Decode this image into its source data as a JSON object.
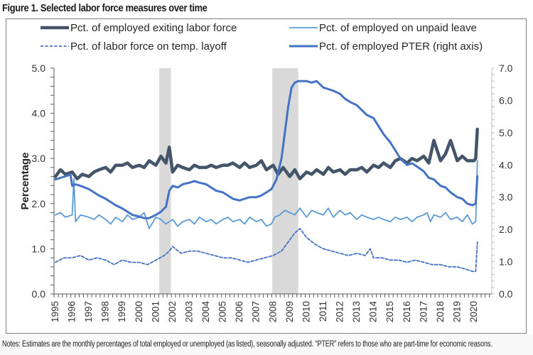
{
  "figure": {
    "title": "Figure 1. Selected labor force measures over time",
    "notes": "Notes: Estimates are the monthly percentages of total employed or unemployed (as listed), seasonally adjusted. “PTER” refers to those who are part-time for economic reasons."
  },
  "chart_data": {
    "type": "line",
    "title": "Figure 1. Selected labor force measures over time",
    "xlabel": "",
    "ylabel": "Percentage",
    "y2label": "",
    "xlim": [
      1995,
      2021
    ],
    "ylim": [
      0,
      5.0
    ],
    "y2lim": [
      0,
      7.0
    ],
    "x_tick_labels": [
      "1995",
      "1996",
      "1997",
      "1998",
      "1999",
      "2000",
      "2001",
      "2002",
      "2003",
      "2004",
      "2005",
      "2006",
      "2007",
      "2008",
      "2009",
      "2010",
      "2011",
      "2012",
      "2013",
      "2014",
      "2015",
      "2016",
      "2017",
      "2018",
      "2019",
      "2020"
    ],
    "y_tick_labels": [
      "0.0",
      "1.0",
      "2.0",
      "3.0",
      "4.0",
      "5.0"
    ],
    "y2_tick_labels": [
      "0.0",
      "1.0",
      "2.0",
      "3.0",
      "4.0",
      "5.0",
      "6.0",
      "7.0"
    ],
    "grid": false,
    "legend_position": "top",
    "recessions": [
      {
        "start": 2001.2,
        "end": 2001.9
      },
      {
        "start": 2007.95,
        "end": 2009.5
      }
    ],
    "series": [
      {
        "name": "Pct. of employed exiting labor force",
        "axis": "left",
        "style": "thick-solid",
        "color": "#44546a",
        "x": [
          1995.0,
          1995.3,
          1995.6,
          1996.0,
          1996.3,
          1996.6,
          1997.0,
          1997.3,
          1997.6,
          1998.0,
          1998.3,
          1998.6,
          1999.0,
          1999.3,
          1999.6,
          2000.0,
          2000.3,
          2000.6,
          2001.0,
          2001.3,
          2001.6,
          2001.8,
          2002.0,
          2002.3,
          2002.6,
          2003.0,
          2003.3,
          2003.6,
          2004.0,
          2004.3,
          2004.6,
          2005.0,
          2005.3,
          2005.6,
          2006.0,
          2006.3,
          2006.6,
          2007.0,
          2007.3,
          2007.6,
          2008.0,
          2008.3,
          2008.6,
          2009.0,
          2009.3,
          2009.6,
          2010.0,
          2010.3,
          2010.6,
          2011.0,
          2011.3,
          2011.6,
          2012.0,
          2012.3,
          2012.6,
          2013.0,
          2013.3,
          2013.6,
          2014.0,
          2014.3,
          2014.6,
          2015.0,
          2015.3,
          2015.6,
          2016.0,
          2016.3,
          2016.6,
          2017.0,
          2017.3,
          2017.6,
          2018.0,
          2018.3,
          2018.6,
          2019.0,
          2019.3,
          2019.6,
          2020.0,
          2020.1,
          2020.2
        ],
        "values": [
          2.6,
          2.75,
          2.65,
          2.7,
          2.55,
          2.65,
          2.6,
          2.7,
          2.75,
          2.8,
          2.7,
          2.85,
          2.85,
          2.9,
          2.8,
          2.85,
          2.8,
          2.95,
          2.85,
          3.05,
          2.9,
          3.25,
          2.7,
          2.85,
          2.8,
          2.75,
          2.85,
          2.8,
          2.8,
          2.85,
          2.8,
          2.85,
          2.85,
          2.9,
          2.8,
          2.9,
          2.8,
          2.85,
          2.95,
          2.75,
          2.85,
          2.65,
          2.8,
          2.6,
          2.75,
          2.55,
          2.7,
          2.65,
          2.75,
          2.65,
          2.8,
          2.7,
          2.75,
          2.65,
          2.75,
          2.75,
          2.8,
          2.7,
          2.85,
          2.8,
          2.9,
          2.8,
          2.95,
          3.0,
          2.9,
          3.0,
          2.95,
          3.05,
          2.9,
          3.4,
          2.95,
          3.1,
          3.4,
          2.95,
          3.05,
          2.95,
          2.95,
          3.0,
          3.65
        ]
      },
      {
        "name": "Pct. of employed on unpaid leave",
        "axis": "left",
        "style": "thin-solid",
        "color": "#5b9bd5",
        "x": [
          1995.0,
          1995.3,
          1995.6,
          1996.0,
          1996.1,
          1996.2,
          1996.5,
          1997.0,
          1997.3,
          1997.6,
          1998.0,
          1998.3,
          1998.6,
          1999.0,
          1999.3,
          1999.6,
          2000.0,
          2000.3,
          2000.6,
          2001.0,
          2001.3,
          2001.6,
          2002.0,
          2002.3,
          2002.6,
          2003.0,
          2003.3,
          2003.6,
          2004.0,
          2004.3,
          2004.6,
          2005.0,
          2005.3,
          2005.6,
          2006.0,
          2006.3,
          2006.6,
          2007.0,
          2007.3,
          2007.6,
          2007.9,
          2008.1,
          2008.4,
          2008.7,
          2009.0,
          2009.3,
          2009.6,
          2010.0,
          2010.3,
          2010.6,
          2011.0,
          2011.3,
          2011.6,
          2012.0,
          2012.3,
          2012.6,
          2013.0,
          2013.3,
          2013.6,
          2014.0,
          2014.3,
          2014.6,
          2015.0,
          2015.3,
          2015.6,
          2016.0,
          2016.3,
          2016.6,
          2017.0,
          2017.2,
          2017.4,
          2017.6,
          2018.0,
          2018.3,
          2018.6,
          2019.0,
          2019.3,
          2019.6,
          2019.9,
          2020.1,
          2020.2
        ],
        "values": [
          1.75,
          1.8,
          1.7,
          1.75,
          2.55,
          1.6,
          1.75,
          1.7,
          1.65,
          1.75,
          1.65,
          1.55,
          1.7,
          1.6,
          1.75,
          1.65,
          1.7,
          1.8,
          1.45,
          1.7,
          1.65,
          1.55,
          1.65,
          1.5,
          1.6,
          1.65,
          1.55,
          1.7,
          1.6,
          1.65,
          1.55,
          1.65,
          1.7,
          1.6,
          1.65,
          1.55,
          1.7,
          1.6,
          1.65,
          1.5,
          1.55,
          1.7,
          1.75,
          1.85,
          1.8,
          1.75,
          1.9,
          1.7,
          1.85,
          1.8,
          1.75,
          1.9,
          1.7,
          1.85,
          1.75,
          1.8,
          1.65,
          1.75,
          1.7,
          1.65,
          1.7,
          1.65,
          1.6,
          1.7,
          1.65,
          1.7,
          1.6,
          1.7,
          1.75,
          1.8,
          1.6,
          1.75,
          1.7,
          1.8,
          1.65,
          1.7,
          1.6,
          1.75,
          1.55,
          1.6,
          2.95
        ]
      },
      {
        "name": "Pct. of labor force on temp. layoff",
        "axis": "left",
        "style": "dashed",
        "color": "#4472c4",
        "x": [
          1995.0,
          1995.5,
          1996.0,
          1996.5,
          1997.0,
          1997.5,
          1998.0,
          1998.5,
          1999.0,
          1999.5,
          2000.0,
          2000.5,
          2001.0,
          2001.5,
          2001.8,
          2002.0,
          2002.5,
          2003.0,
          2003.5,
          2004.0,
          2004.5,
          2005.0,
          2005.5,
          2006.0,
          2006.5,
          2007.0,
          2007.5,
          2008.0,
          2008.5,
          2009.0,
          2009.3,
          2009.6,
          2010.0,
          2010.5,
          2011.0,
          2011.5,
          2012.0,
          2012.5,
          2013.0,
          2013.5,
          2013.8,
          2014.0,
          2014.5,
          2015.0,
          2015.5,
          2016.0,
          2016.5,
          2017.0,
          2017.5,
          2018.0,
          2018.5,
          2019.0,
          2019.5,
          2019.9,
          2020.1,
          2020.2
        ],
        "values": [
          0.7,
          0.8,
          0.8,
          0.85,
          0.75,
          0.8,
          0.75,
          0.65,
          0.75,
          0.7,
          0.7,
          0.65,
          0.75,
          0.85,
          0.95,
          1.05,
          0.9,
          0.95,
          0.95,
          0.9,
          0.85,
          0.8,
          0.8,
          0.75,
          0.7,
          0.75,
          0.8,
          0.85,
          0.95,
          1.2,
          1.35,
          1.45,
          1.25,
          1.1,
          1.0,
          0.95,
          0.9,
          0.85,
          0.9,
          0.85,
          1.0,
          0.8,
          0.8,
          0.75,
          0.75,
          0.7,
          0.75,
          0.7,
          0.65,
          0.65,
          0.6,
          0.6,
          0.55,
          0.5,
          0.5,
          1.15
        ]
      },
      {
        "name": "Pct. of employed PTER (right axis)",
        "axis": "right",
        "style": "medium-solid",
        "color": "#4472c4",
        "x": [
          1995.0,
          1995.3,
          1995.6,
          1995.9,
          1996.0,
          1996.2,
          1996.5,
          1997.0,
          1997.3,
          1997.6,
          1998.0,
          1998.3,
          1998.6,
          1999.0,
          1999.3,
          1999.6,
          2000.0,
          2000.3,
          2000.6,
          2001.0,
          2001.3,
          2001.6,
          2001.8,
          2002.0,
          2002.3,
          2002.6,
          2003.0,
          2003.3,
          2003.6,
          2004.0,
          2004.3,
          2004.6,
          2005.0,
          2005.3,
          2005.6,
          2006.0,
          2006.3,
          2006.6,
          2007.0,
          2007.3,
          2007.6,
          2007.9,
          2008.2,
          2008.5,
          2008.7,
          2008.9,
          2009.1,
          2009.3,
          2009.5,
          2010.0,
          2010.3,
          2010.6,
          2011.0,
          2011.3,
          2011.6,
          2012.0,
          2012.3,
          2012.6,
          2013.0,
          2013.3,
          2013.6,
          2014.0,
          2014.3,
          2014.6,
          2015.0,
          2015.3,
          2015.6,
          2016.0,
          2016.3,
          2016.6,
          2017.0,
          2017.3,
          2017.6,
          2018.0,
          2018.3,
          2018.6,
          2019.0,
          2019.3,
          2019.6,
          2019.9,
          2020.1,
          2020.2
        ],
        "values": [
          3.55,
          3.6,
          3.65,
          3.7,
          3.35,
          3.4,
          3.35,
          3.25,
          3.15,
          3.05,
          2.95,
          2.85,
          2.75,
          2.65,
          2.55,
          2.45,
          2.4,
          2.35,
          2.35,
          2.45,
          2.55,
          2.7,
          3.2,
          3.35,
          3.3,
          3.4,
          3.45,
          3.5,
          3.45,
          3.4,
          3.3,
          3.2,
          3.15,
          3.05,
          2.95,
          2.9,
          2.95,
          3.0,
          3.0,
          3.05,
          3.15,
          3.25,
          3.55,
          4.2,
          5.0,
          5.8,
          6.4,
          6.55,
          6.6,
          6.6,
          6.55,
          6.6,
          6.4,
          6.35,
          6.3,
          6.2,
          6.05,
          5.95,
          5.85,
          5.7,
          5.55,
          5.45,
          5.2,
          4.95,
          4.7,
          4.45,
          4.2,
          4.0,
          4.05,
          3.95,
          3.8,
          3.6,
          3.55,
          3.35,
          3.3,
          3.15,
          3.0,
          2.95,
          2.8,
          2.75,
          2.8,
          3.65
        ]
      }
    ]
  }
}
